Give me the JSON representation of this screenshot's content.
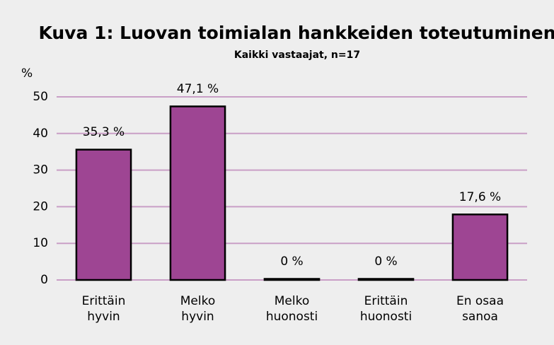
{
  "chart_data": {
    "type": "bar",
    "title": "Kuva 1: Luovan toimialan hankkeiden toteutuminen",
    "subtitle": "Kaikki vastaajat, n=17",
    "y_label": "%",
    "categories": [
      [
        "Erittäin",
        "hyvin"
      ],
      [
        "Melko",
        "hyvin"
      ],
      [
        "Melko",
        "huonosti"
      ],
      [
        "Erittäin",
        "huonosti"
      ],
      [
        "En osaa",
        "sanoa"
      ]
    ],
    "values": [
      35.3,
      47.1,
      0,
      0,
      17.6
    ],
    "value_labels": [
      "35,3 %",
      "47,1 %",
      "0 %",
      "0 %",
      "17,6 %"
    ],
    "color": "#9e4593",
    "ylim": [
      0,
      50
    ],
    "yticks": [
      0,
      10,
      20,
      30,
      40,
      50
    ],
    "grid": true
  }
}
